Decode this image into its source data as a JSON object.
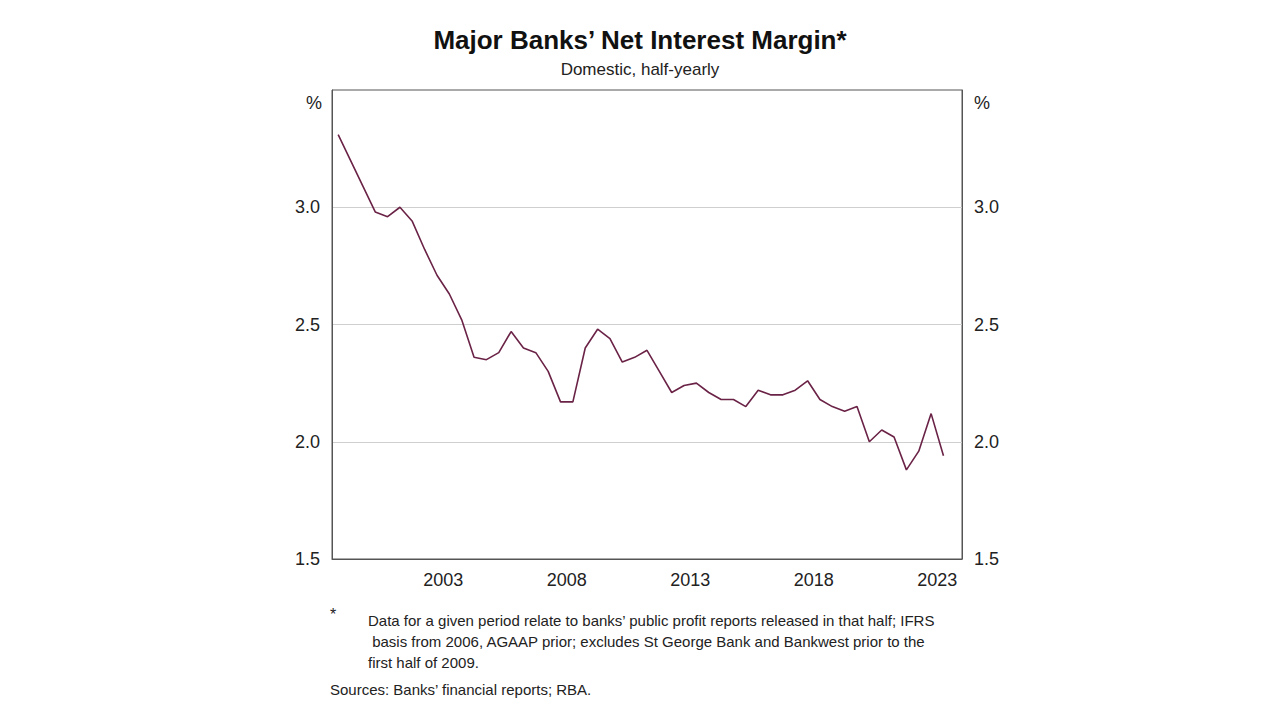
{
  "chart_data": {
    "type": "line",
    "title": "Major Banks’ Net Interest Margin*",
    "subtitle": "Domestic, half-yearly",
    "y_unit": "%",
    "footnote_marker": "*",
    "footnote": "Data for a given period relate to banks’ public profit reports released in that half; IFRS basis from 2006, AGAAP prior; excludes St George Bank and Bankwest prior to the first half of 2009.",
    "sources": "Sources: Banks’ financial reports; RBA.",
    "color": "#6a2346",
    "x": [
      1999.25,
      1999.75,
      2000.25,
      2000.75,
      2001.25,
      2001.75,
      2002.25,
      2002.75,
      2003.25,
      2003.75,
      2004.25,
      2004.75,
      2005.25,
      2005.75,
      2006.25,
      2006.75,
      2007.25,
      2007.75,
      2008.25,
      2008.75,
      2009.25,
      2009.75,
      2010.25,
      2010.75,
      2011.25,
      2011.75,
      2012.25,
      2012.75,
      2013.25,
      2013.75,
      2014.25,
      2014.75,
      2015.25,
      2015.75,
      2016.25,
      2016.75,
      2017.25,
      2017.75,
      2018.25,
      2018.75,
      2019.25,
      2019.75,
      2020.25,
      2020.75,
      2021.25,
      2021.75,
      2022.25,
      2022.75,
      2023.25,
      2023.75
    ],
    "values": [
      3.31,
      3.2,
      3.09,
      2.98,
      2.96,
      3.0,
      2.94,
      2.82,
      2.71,
      2.63,
      2.52,
      2.36,
      2.35,
      2.38,
      2.47,
      2.4,
      2.38,
      2.3,
      2.17,
      2.17,
      2.4,
      2.48,
      2.44,
      2.34,
      2.36,
      2.39,
      2.3,
      2.21,
      2.24,
      2.25,
      2.21,
      2.18,
      2.18,
      2.15,
      2.22,
      2.2,
      2.2,
      2.22,
      2.26,
      2.18,
      2.15,
      2.13,
      2.15,
      2.0,
      2.05,
      2.02,
      1.88,
      1.96,
      2.12,
      1.94
    ],
    "xlim": [
      1999,
      2024.5
    ],
    "xticks": [
      {
        "value": 2003.5,
        "label": "2003"
      },
      {
        "value": 2008.5,
        "label": "2008"
      },
      {
        "value": 2013.5,
        "label": "2013"
      },
      {
        "value": 2018.5,
        "label": "2018"
      },
      {
        "value": 2023.5,
        "label": "2023"
      }
    ],
    "ylim": [
      1.5,
      3.5
    ],
    "yticks": [
      1.5,
      {
        "value": 2,
        "label": "2.0"
      },
      2.5,
      {
        "value": 3,
        "label": "3.0"
      }
    ],
    "grid": true
  }
}
